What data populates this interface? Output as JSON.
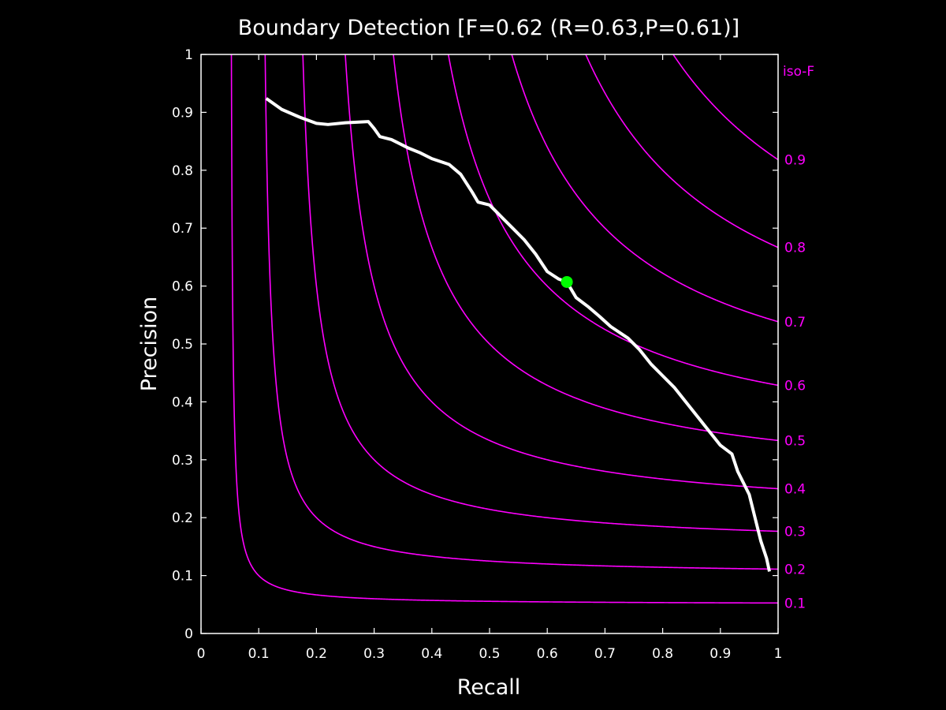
{
  "chart_data": {
    "type": "line",
    "title": "Boundary Detection [F=0.62 (R=0.63,P=0.61)]",
    "xlabel": "Recall",
    "ylabel": "Precision",
    "xlim": [
      0,
      1
    ],
    "ylim": [
      0,
      1
    ],
    "xticks": [
      "0",
      "0.1",
      "0.2",
      "0.3",
      "0.4",
      "0.5",
      "0.6",
      "0.7",
      "0.8",
      "0.9",
      "1"
    ],
    "yticks": [
      "0",
      "0.1",
      "0.2",
      "0.3",
      "0.4",
      "0.5",
      "0.6",
      "0.7",
      "0.8",
      "0.9",
      "1"
    ],
    "grid": false,
    "colors": {
      "background": "#000000",
      "axes": "#ffffff",
      "pr_curve": "#ffffff",
      "iso_f": "#ff00ff",
      "best_point": "#00ff00"
    },
    "iso_f": {
      "label": "iso-F",
      "levels": [
        0.1,
        0.2,
        0.3,
        0.4,
        0.5,
        0.6,
        0.7,
        0.8,
        0.9
      ],
      "level_labels": [
        "0.1",
        "0.2",
        "0.3",
        "0.4",
        "0.5",
        "0.6",
        "0.7",
        "0.8",
        "0.9"
      ]
    },
    "series": [
      {
        "type": "line",
        "recall": [
          0.113,
          0.14,
          0.17,
          0.2,
          0.22,
          0.25,
          0.29,
          0.3,
          0.31,
          0.33,
          0.36,
          0.38,
          0.4,
          0.43,
          0.45,
          0.47,
          0.48,
          0.5,
          0.52,
          0.54,
          0.56,
          0.58,
          0.6,
          0.62,
          0.634,
          0.65,
          0.67,
          0.69,
          0.71,
          0.74,
          0.76,
          0.78,
          0.8,
          0.82,
          0.84,
          0.86,
          0.88,
          0.9,
          0.92,
          0.93,
          0.94,
          0.95,
          0.96,
          0.97,
          0.98,
          0.985
        ],
        "precision": [
          0.924,
          0.905,
          0.892,
          0.881,
          0.879,
          0.882,
          0.884,
          0.872,
          0.858,
          0.853,
          0.838,
          0.83,
          0.82,
          0.81,
          0.793,
          0.762,
          0.745,
          0.74,
          0.72,
          0.7,
          0.68,
          0.655,
          0.625,
          0.612,
          0.607,
          0.58,
          0.565,
          0.548,
          0.53,
          0.51,
          0.49,
          0.465,
          0.445,
          0.425,
          0.4,
          0.375,
          0.35,
          0.325,
          0.31,
          0.28,
          0.26,
          0.24,
          0.2,
          0.16,
          0.13,
          0.107
        ]
      },
      {
        "type": "point",
        "recall": [
          0.634
        ],
        "precision": [
          0.607
        ]
      }
    ]
  }
}
